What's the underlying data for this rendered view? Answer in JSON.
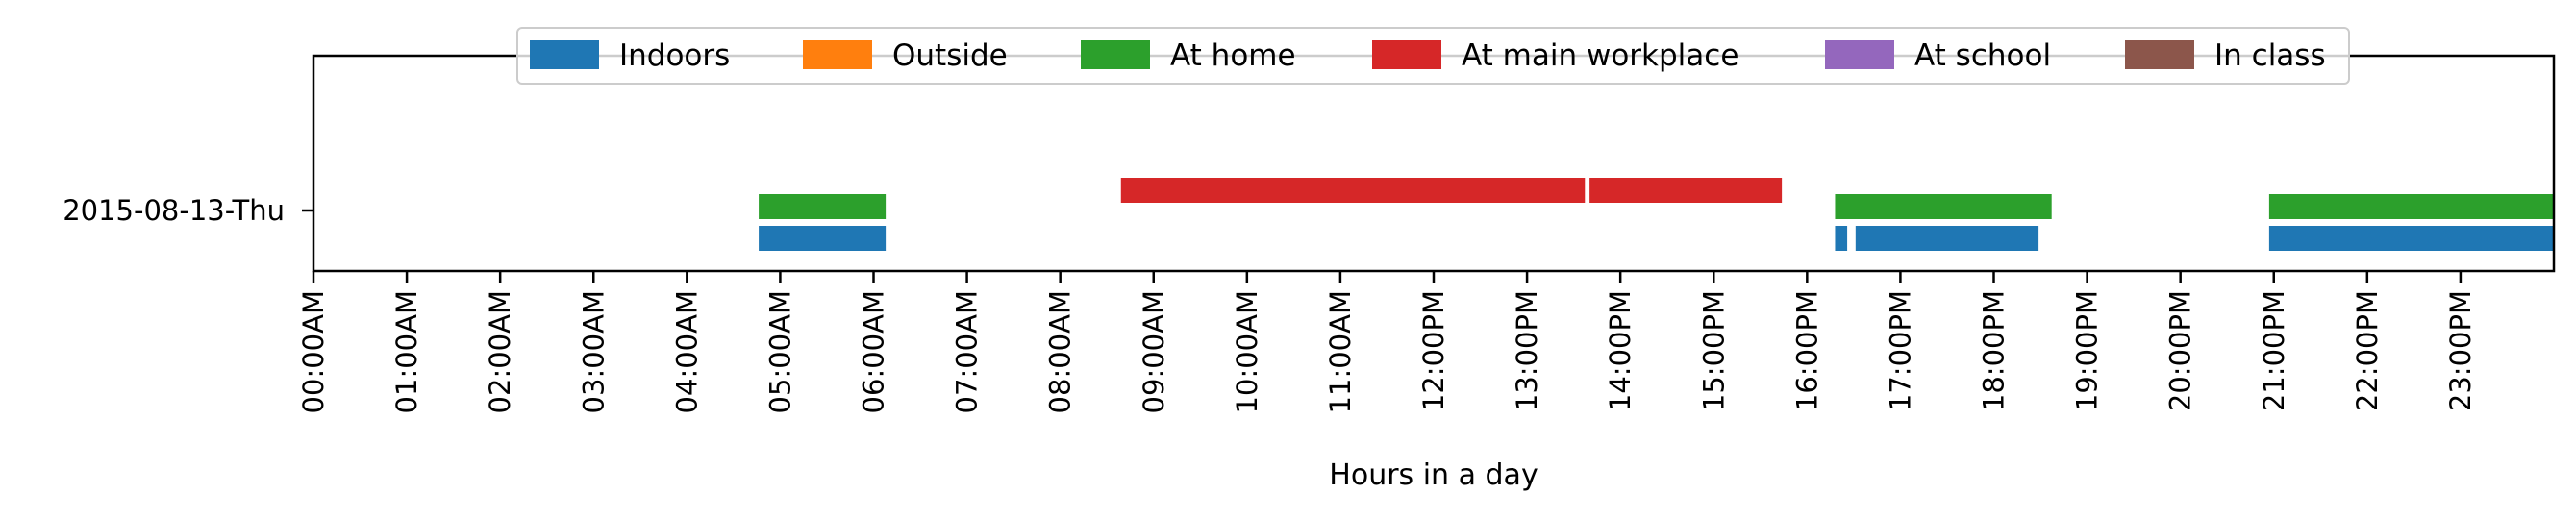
{
  "chart_data": {
    "type": "timeline",
    "xlabel": "Hours in a day",
    "xlim": [
      0,
      24
    ],
    "x_tick_labels": [
      "00:00AM",
      "01:00AM",
      "02:00AM",
      "03:00AM",
      "04:00AM",
      "05:00AM",
      "06:00AM",
      "07:00AM",
      "08:00AM",
      "09:00AM",
      "10:00AM",
      "11:00AM",
      "12:00PM",
      "13:00PM",
      "14:00PM",
      "15:00PM",
      "16:00PM",
      "17:00PM",
      "18:00PM",
      "19:00PM",
      "20:00PM",
      "21:00PM",
      "22:00PM",
      "23:00PM"
    ],
    "y_tick_labels": [
      "2015-08-13-Thu"
    ],
    "legend_position": "top-center",
    "series": [
      {
        "name": "Indoors",
        "color": "#1f77b4",
        "segments": [
          [
            4.77,
            6.13
          ],
          [
            16.3,
            16.43
          ],
          [
            16.52,
            18.48
          ],
          [
            20.95,
            24.0
          ]
        ]
      },
      {
        "name": "Outside",
        "color": "#ff7f0e",
        "segments": []
      },
      {
        "name": "At home",
        "color": "#2ca02c",
        "segments": [
          [
            4.77,
            6.13
          ],
          [
            16.3,
            18.62
          ],
          [
            20.95,
            24.0
          ]
        ]
      },
      {
        "name": "At main workplace",
        "color": "#d62728",
        "segments": [
          [
            8.65,
            13.62
          ],
          [
            13.67,
            15.73
          ]
        ]
      },
      {
        "name": "At school",
        "color": "#9467bd",
        "segments": []
      },
      {
        "name": "In class",
        "color": "#8c564b",
        "segments": []
      }
    ]
  }
}
